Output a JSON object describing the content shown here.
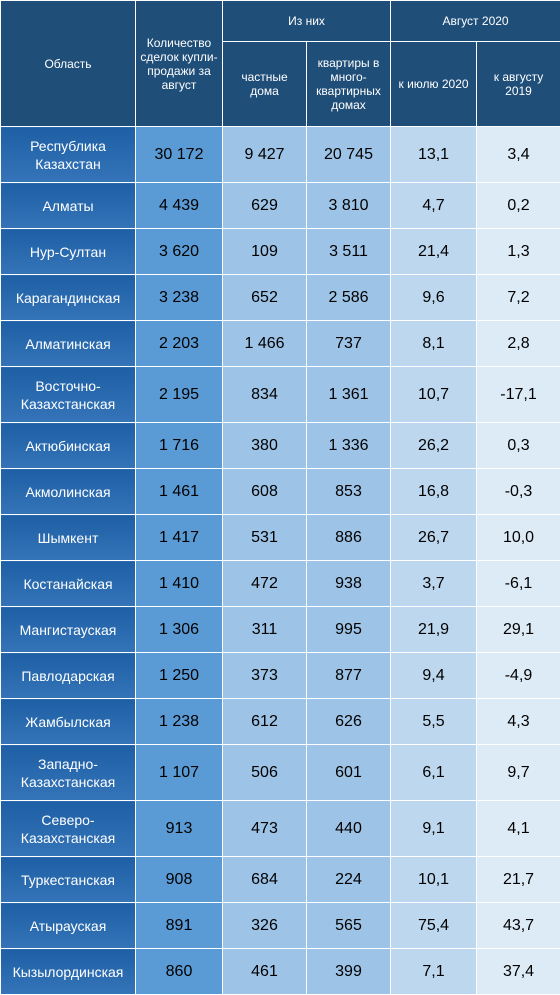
{
  "header": {
    "region": "Область",
    "deals": "Количество сделок купли-продажи за август",
    "of_them": "Из них",
    "august_2020": "Август 2020",
    "private_houses": "частные дома",
    "apartments": "квартиры в много-квартирных домах",
    "vs_july": "к июлю 2020",
    "vs_august": "к августу 2019"
  },
  "rows": [
    {
      "region": "Республика Казахстан",
      "deals": "30 172",
      "private": "9 427",
      "apartments": "20 745",
      "vs_july": "13,1",
      "vs_aug": "3,4"
    },
    {
      "region": "Алматы",
      "deals": "4 439",
      "private": "629",
      "apartments": "3 810",
      "vs_july": "4,7",
      "vs_aug": "0,2"
    },
    {
      "region": "Нур-Султан",
      "deals": "3 620",
      "private": "109",
      "apartments": "3 511",
      "vs_july": "21,4",
      "vs_aug": "1,3"
    },
    {
      "region": "Карагандинская",
      "deals": "3 238",
      "private": "652",
      "apartments": "2 586",
      "vs_july": "9,6",
      "vs_aug": "7,2"
    },
    {
      "region": "Алматинская",
      "deals": "2 203",
      "private": "1 466",
      "apartments": "737",
      "vs_july": "8,1",
      "vs_aug": "2,8"
    },
    {
      "region": "Восточно-Казахстанская",
      "deals": "2 195",
      "private": "834",
      "apartments": "1 361",
      "vs_july": "10,7",
      "vs_aug": "-17,1"
    },
    {
      "region": "Актюбинская",
      "deals": "1 716",
      "private": "380",
      "apartments": "1 336",
      "vs_july": "26,2",
      "vs_aug": "0,3"
    },
    {
      "region": "Акмолинская",
      "deals": "1 461",
      "private": "608",
      "apartments": "853",
      "vs_july": "16,8",
      "vs_aug": "-0,3"
    },
    {
      "region": "Шымкент",
      "deals": "1 417",
      "private": "531",
      "apartments": "886",
      "vs_july": "26,7",
      "vs_aug": "10,0"
    },
    {
      "region": "Костанайская",
      "deals": "1 410",
      "private": "472",
      "apartments": "938",
      "vs_july": "3,7",
      "vs_aug": "-6,1"
    },
    {
      "region": "Мангистауская",
      "deals": "1 306",
      "private": "311",
      "apartments": "995",
      "vs_july": "21,9",
      "vs_aug": "29,1"
    },
    {
      "region": "Павлодарская",
      "deals": "1 250",
      "private": "373",
      "apartments": "877",
      "vs_july": "9,4",
      "vs_aug": "-4,9"
    },
    {
      "region": "Жамбылская",
      "deals": "1 238",
      "private": "612",
      "apartments": "626",
      "vs_july": "5,5",
      "vs_aug": "4,3"
    },
    {
      "region": "Западно-Казахстанская",
      "deals": "1 107",
      "private": "506",
      "apartments": "601",
      "vs_july": "6,1",
      "vs_aug": "9,7"
    },
    {
      "region": "Северо-Казахстанская",
      "deals": "913",
      "private": "473",
      "apartments": "440",
      "vs_july": "9,1",
      "vs_aug": "4,1"
    },
    {
      "region": "Туркестанская",
      "deals": "908",
      "private": "684",
      "apartments": "224",
      "vs_july": "10,1",
      "vs_aug": "21,7"
    },
    {
      "region": "Атырауская",
      "deals": "891",
      "private": "326",
      "apartments": "565",
      "vs_july": "75,4",
      "vs_aug": "43,7"
    },
    {
      "region": "Кызылординская",
      "deals": "860",
      "private": "461",
      "apartments": "399",
      "vs_july": "7,1",
      "vs_aug": "37,4"
    }
  ]
}
